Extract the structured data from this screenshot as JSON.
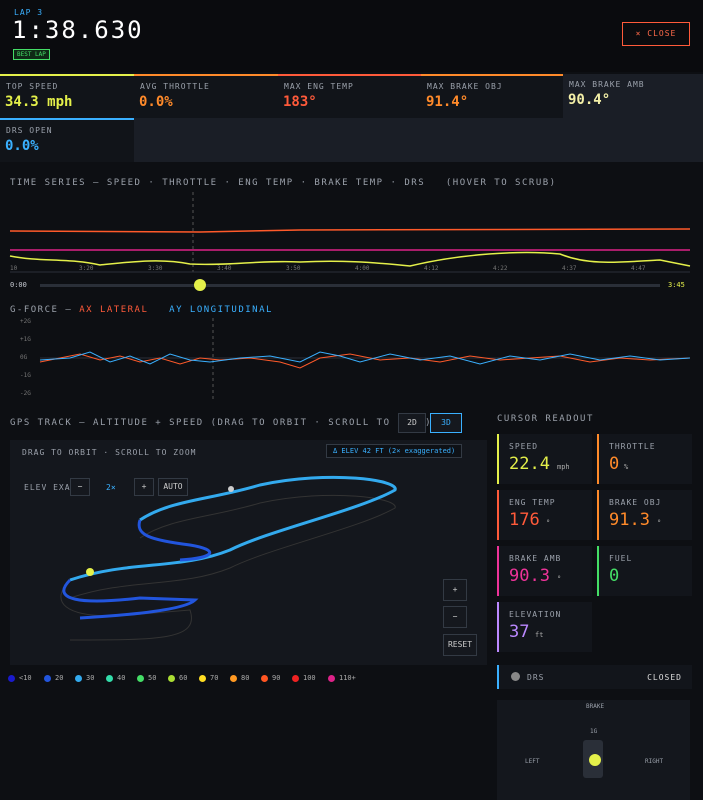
{
  "header": {
    "lap": "LAP 3",
    "time": "1:38.630",
    "badge": "BEST LAP",
    "close": "× CLOSE"
  },
  "stats": [
    {
      "label": "TOP SPEED",
      "value": "34.3 mph",
      "color": "#e4f04a"
    },
    {
      "label": "AVG THROTTLE",
      "value": "0.0%",
      "color": "#ff8a2a"
    },
    {
      "label": "MAX ENG TEMP",
      "value": "183°",
      "color": "#ff5a3a"
    },
    {
      "label": "MAX BRAKE OBJ",
      "value": "91.4°",
      "color": "#ff8a2a"
    },
    {
      "label": "MAX BRAKE AMB",
      "value": "90.4°",
      "color": "#f4f0a8"
    },
    {
      "label": "DRS OPEN",
      "value": "0.0%",
      "color": "#3ab0ff"
    }
  ],
  "time_series": {
    "title": "TIME SERIES — SPEED · THROTTLE · ENG TEMP · BRAKE TEMP · DRS",
    "hint": "(HOVER TO SCRUB)",
    "x_labels": [
      "10",
      "3:20",
      "3:30",
      "3:40",
      "3:50",
      "4:00",
      "4:12",
      "4:22",
      "4:37",
      "4:47"
    ],
    "scrub_start": "0:00",
    "scrub_end": "3:45"
  },
  "gforce": {
    "title": "G-FORCE —",
    "ax": "AX LATERAL",
    "ay": "AY LONGITUDINAL",
    "y_labels": [
      "+2G",
      "+1G",
      "0G",
      "-1G",
      "-2G"
    ]
  },
  "gps": {
    "title": "GPS TRACK — ALTITUDE + SPEED (DRAG TO ORBIT · SCROLL TO ZOOM)",
    "view_2d": "2D",
    "view_3d": "3D",
    "hint": "DRAG TO ORBIT · SCROLL TO ZOOM",
    "delta": "Δ ELEV 42 FT (2× exaggerated)",
    "exag_label": "ELEV EXAG",
    "exag_minus": "−",
    "exag_value": "2×",
    "exag_plus": "+",
    "exag_auto": "AUTO",
    "zoom_in": "+",
    "zoom_out": "−",
    "reset": "RESET",
    "legend": [
      {
        "label": "<10",
        "color": "#1a1acc"
      },
      {
        "label": "20",
        "color": "#2255dd"
      },
      {
        "label": "30",
        "color": "#33aaee"
      },
      {
        "label": "40",
        "color": "#33ddaa"
      },
      {
        "label": "50",
        "color": "#44dd66"
      },
      {
        "label": "60",
        "color": "#aadd33"
      },
      {
        "label": "70",
        "color": "#ffdd22"
      },
      {
        "label": "80",
        "color": "#ff9922"
      },
      {
        "label": "90",
        "color": "#ff5522"
      },
      {
        "label": "100",
        "color": "#ee2222"
      },
      {
        "label": "110+",
        "color": "#dd2288"
      }
    ]
  },
  "readout": {
    "title": "CURSOR READOUT",
    "cards": [
      {
        "label": "SPEED",
        "value": "22.4",
        "unit": "mph",
        "color": "#e4f04a"
      },
      {
        "label": "THROTTLE",
        "value": "0",
        "unit": "%",
        "color": "#ff8a2a"
      },
      {
        "label": "ENG TEMP",
        "value": "176",
        "unit": "°",
        "color": "#ff5a3a"
      },
      {
        "label": "BRAKE OBJ",
        "value": "91.3",
        "unit": "°",
        "color": "#ff8a2a"
      },
      {
        "label": "BRAKE AMB",
        "value": "90.3",
        "unit": "°",
        "color": "#ee3399"
      },
      {
        "label": "FUEL",
        "value": "0",
        "color": "#44dd66"
      },
      {
        "label": "ELEVATION",
        "value": "37",
        "unit": "ft",
        "color": "#bb88ff"
      }
    ],
    "drs_label": "DRS",
    "drs_state": "CLOSED",
    "g_top": "BRAKE",
    "g_scale": "1G",
    "g_left": "LEFT",
    "g_right": "RIGHT"
  }
}
